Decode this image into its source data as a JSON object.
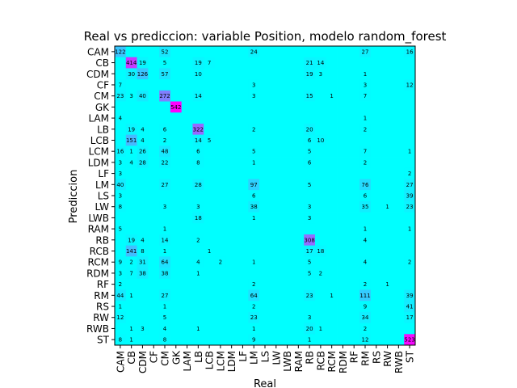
{
  "chart_data": {
    "type": "heatmap",
    "title": "Real vs prediccion: variable Position, modelo random_forest",
    "xlabel": "Real",
    "ylabel": "Prediccion",
    "labels": [
      "CAM",
      "CB",
      "CDM",
      "CF",
      "CM",
      "GK",
      "LAM",
      "LB",
      "LCB",
      "LCM",
      "LDM",
      "LF",
      "LM",
      "LS",
      "LW",
      "LWB",
      "RAM",
      "RB",
      "RCB",
      "RCM",
      "RDM",
      "RF",
      "RM",
      "RS",
      "RW",
      "RWB",
      "ST"
    ],
    "colormap": {
      "low": "#00ffff",
      "high": "#ff00ff"
    },
    "max_value": 542,
    "matrix": [
      [
        122,
        0,
        0,
        0,
        52,
        0,
        0,
        0,
        0,
        0,
        0,
        0,
        24,
        0,
        0,
        0,
        0,
        0,
        0,
        0,
        0,
        0,
        27,
        0,
        0,
        0,
        16
      ],
      [
        0,
        414,
        19,
        0,
        5,
        0,
        0,
        19,
        7,
        0,
        0,
        0,
        0,
        0,
        0,
        0,
        0,
        21,
        14,
        0,
        0,
        0,
        0,
        0,
        0,
        0,
        0
      ],
      [
        0,
        30,
        126,
        0,
        57,
        0,
        0,
        10,
        0,
        0,
        0,
        0,
        0,
        0,
        0,
        0,
        0,
        19,
        3,
        0,
        0,
        0,
        1,
        0,
        0,
        0,
        0
      ],
      [
        7,
        0,
        0,
        0,
        0,
        0,
        0,
        0,
        0,
        0,
        0,
        0,
        3,
        0,
        0,
        0,
        0,
        0,
        0,
        0,
        0,
        0,
        3,
        0,
        0,
        0,
        12
      ],
      [
        23,
        3,
        40,
        0,
        272,
        0,
        0,
        14,
        0,
        0,
        0,
        0,
        3,
        0,
        0,
        0,
        0,
        15,
        0,
        1,
        0,
        0,
        7,
        0,
        0,
        0,
        0
      ],
      [
        0,
        0,
        0,
        0,
        0,
        542,
        0,
        0,
        0,
        0,
        0,
        0,
        0,
        0,
        0,
        0,
        0,
        0,
        0,
        0,
        0,
        0,
        0,
        0,
        0,
        0,
        0
      ],
      [
        4,
        0,
        0,
        0,
        0,
        0,
        0,
        0,
        0,
        0,
        0,
        0,
        0,
        0,
        0,
        0,
        0,
        0,
        0,
        0,
        0,
        0,
        1,
        0,
        0,
        0,
        0
      ],
      [
        0,
        19,
        4,
        0,
        6,
        0,
        0,
        322,
        0,
        0,
        0,
        0,
        2,
        0,
        0,
        0,
        0,
        20,
        0,
        0,
        0,
        0,
        2,
        0,
        0,
        0,
        0
      ],
      [
        0,
        151,
        4,
        0,
        2,
        0,
        0,
        14,
        5,
        0,
        0,
        0,
        0,
        0,
        0,
        0,
        0,
        6,
        10,
        0,
        0,
        0,
        0,
        0,
        0,
        0,
        0
      ],
      [
        16,
        1,
        26,
        0,
        48,
        0,
        0,
        6,
        0,
        0,
        0,
        0,
        5,
        0,
        0,
        0,
        0,
        5,
        0,
        0,
        0,
        0,
        7,
        0,
        0,
        0,
        1
      ],
      [
        3,
        4,
        28,
        0,
        22,
        0,
        0,
        8,
        0,
        0,
        0,
        0,
        1,
        0,
        0,
        0,
        0,
        6,
        0,
        0,
        0,
        0,
        2,
        0,
        0,
        0,
        0
      ],
      [
        3,
        0,
        0,
        0,
        0,
        0,
        0,
        0,
        0,
        0,
        0,
        0,
        0,
        0,
        0,
        0,
        0,
        0,
        0,
        0,
        0,
        0,
        0,
        0,
        0,
        0,
        2
      ],
      [
        40,
        0,
        0,
        0,
        27,
        0,
        0,
        28,
        0,
        0,
        0,
        0,
        97,
        0,
        0,
        0,
        0,
        5,
        0,
        0,
        0,
        0,
        76,
        0,
        0,
        0,
        27
      ],
      [
        3,
        0,
        0,
        0,
        0,
        0,
        0,
        0,
        0,
        0,
        0,
        0,
        6,
        0,
        0,
        0,
        0,
        0,
        0,
        0,
        0,
        0,
        6,
        0,
        0,
        0,
        39
      ],
      [
        8,
        0,
        0,
        0,
        3,
        0,
        0,
        3,
        0,
        0,
        0,
        0,
        38,
        0,
        0,
        0,
        0,
        3,
        0,
        0,
        0,
        0,
        35,
        0,
        1,
        0,
        23
      ],
      [
        0,
        0,
        0,
        0,
        0,
        0,
        0,
        18,
        0,
        0,
        0,
        0,
        1,
        0,
        0,
        0,
        0,
        3,
        0,
        0,
        0,
        0,
        0,
        0,
        0,
        0,
        0
      ],
      [
        5,
        0,
        0,
        0,
        1,
        0,
        0,
        0,
        0,
        0,
        0,
        0,
        0,
        0,
        0,
        0,
        0,
        0,
        0,
        0,
        0,
        0,
        1,
        0,
        0,
        0,
        1
      ],
      [
        0,
        19,
        4,
        0,
        14,
        0,
        0,
        2,
        0,
        0,
        0,
        0,
        0,
        0,
        0,
        0,
        0,
        308,
        0,
        0,
        0,
        0,
        4,
        0,
        0,
        0,
        0
      ],
      [
        0,
        141,
        8,
        0,
        1,
        0,
        0,
        0,
        1,
        0,
        0,
        0,
        0,
        0,
        0,
        0,
        0,
        17,
        18,
        0,
        0,
        0,
        0,
        0,
        0,
        0,
        0
      ],
      [
        9,
        2,
        31,
        0,
        64,
        0,
        0,
        4,
        0,
        2,
        0,
        0,
        1,
        0,
        0,
        0,
        0,
        5,
        0,
        0,
        0,
        0,
        4,
        0,
        0,
        0,
        2
      ],
      [
        3,
        7,
        38,
        0,
        38,
        0,
        0,
        1,
        0,
        0,
        0,
        0,
        0,
        0,
        0,
        0,
        0,
        5,
        2,
        0,
        0,
        0,
        0,
        0,
        0,
        0,
        0
      ],
      [
        2,
        0,
        0,
        0,
        0,
        0,
        0,
        0,
        0,
        0,
        0,
        0,
        2,
        0,
        0,
        0,
        0,
        0,
        0,
        0,
        0,
        0,
        2,
        0,
        1,
        0,
        0
      ],
      [
        44,
        1,
        0,
        0,
        27,
        0,
        0,
        0,
        0,
        0,
        0,
        0,
        64,
        0,
        0,
        0,
        0,
        23,
        0,
        1,
        0,
        0,
        111,
        0,
        0,
        0,
        39
      ],
      [
        1,
        0,
        0,
        0,
        1,
        0,
        0,
        0,
        0,
        0,
        0,
        0,
        2,
        0,
        0,
        0,
        0,
        0,
        0,
        0,
        0,
        0,
        9,
        0,
        0,
        0,
        41
      ],
      [
        12,
        0,
        0,
        0,
        5,
        0,
        0,
        0,
        0,
        0,
        0,
        0,
        23,
        0,
        0,
        0,
        0,
        3,
        0,
        0,
        0,
        0,
        34,
        0,
        0,
        0,
        17
      ],
      [
        0,
        1,
        3,
        0,
        4,
        0,
        0,
        1,
        0,
        0,
        0,
        0,
        1,
        0,
        0,
        0,
        0,
        20,
        1,
        0,
        0,
        0,
        2,
        0,
        0,
        0,
        0
      ],
      [
        8,
        1,
        0,
        0,
        8,
        0,
        0,
        0,
        0,
        0,
        0,
        0,
        9,
        0,
        0,
        0,
        0,
        1,
        0,
        0,
        0,
        0,
        12,
        0,
        0,
        0,
        523
      ]
    ]
  }
}
